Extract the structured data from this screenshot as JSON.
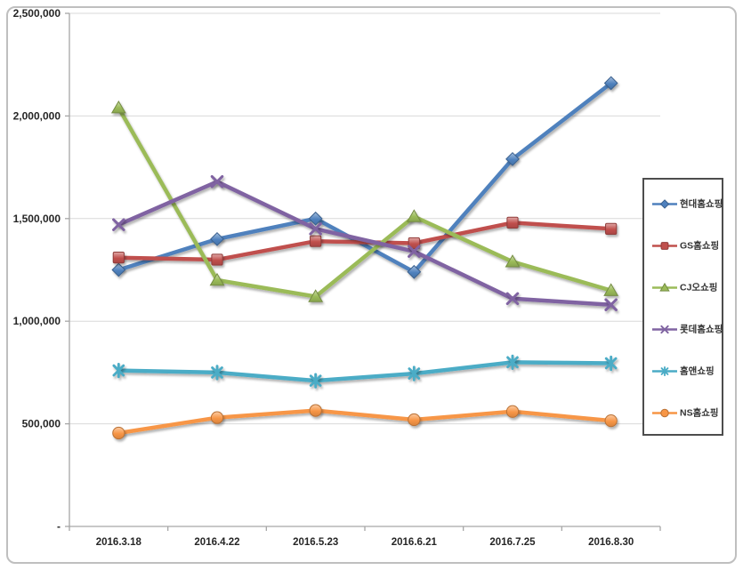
{
  "chart_data": {
    "type": "line",
    "title": "",
    "xlabel": "",
    "ylabel": "",
    "grid": true,
    "legend_position": "right",
    "categories": [
      "2016.3.18",
      "2016.4.22",
      "2016.5.23",
      "2016.6.21",
      "2016.7.25",
      "2016.8.30"
    ],
    "y_axis": {
      "min": 0,
      "max": 2500000,
      "step": 500000,
      "tick_labels": [
        "-",
        "500,000",
        "1,000,000",
        "1,500,000",
        "2,000,000",
        "2,500,000"
      ]
    },
    "series": [
      {
        "name": "현대홈쇼핑",
        "color": "#4F81BD",
        "marker": "diamond",
        "values": [
          1250000,
          1400000,
          1500000,
          1240000,
          1790000,
          2160000
        ]
      },
      {
        "name": "GS홈쇼핑",
        "color": "#C0504D",
        "marker": "square",
        "values": [
          1310000,
          1300000,
          1390000,
          1380000,
          1480000,
          1450000
        ]
      },
      {
        "name": "CJ오쇼핑",
        "color": "#9BBB59",
        "marker": "triangle",
        "values": [
          2040000,
          1200000,
          1120000,
          1510000,
          1290000,
          1150000
        ]
      },
      {
        "name": "롯데홈쇼핑",
        "color": "#8064A2",
        "marker": "x",
        "values": [
          1470000,
          1680000,
          1450000,
          1340000,
          1110000,
          1080000
        ]
      },
      {
        "name": "홈앤쇼핑",
        "color": "#4BACC6",
        "marker": "asterisk",
        "values": [
          760000,
          750000,
          710000,
          745000,
          800000,
          795000
        ]
      },
      {
        "name": "NS홈쇼핑",
        "color": "#F79646",
        "marker": "circle",
        "values": [
          455000,
          530000,
          565000,
          520000,
          560000,
          515000
        ]
      }
    ],
    "colors": {
      "gridline": "#D9D9D9",
      "axis": "#A6A6A6",
      "axis_text": "#262626",
      "outer_border": "#BFBFBF",
      "legend_border": "#4d4d4d"
    }
  }
}
